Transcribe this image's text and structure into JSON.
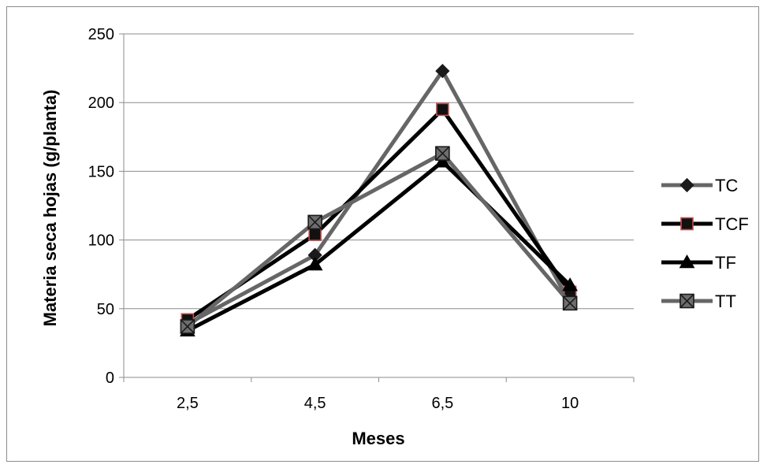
{
  "chart_data": {
    "type": "line",
    "title": "",
    "xlabel": "Meses",
    "ylabel": "Materia seca hojas (g/planta)",
    "categories": [
      "2,5",
      "4,5",
      "6,5",
      "10"
    ],
    "ylim": [
      0,
      250
    ],
    "yticks": [
      0,
      50,
      100,
      150,
      200,
      250
    ],
    "ytick_labels": [
      "0",
      "50",
      "100",
      "150",
      "200",
      "250"
    ],
    "grid": true,
    "legend_position": "right",
    "series": [
      {
        "name": "TC",
        "values": [
          39,
          89,
          223,
          54
        ],
        "color": "#666666",
        "marker": "diamond",
        "marker_fill": "#1a1a1a",
        "marker_stroke": "#1a1a1a"
      },
      {
        "name": "TCF",
        "values": [
          42,
          104,
          195,
          62
        ],
        "color": "#000000",
        "marker": "square",
        "marker_fill": "#111111",
        "marker_stroke": "#c0504d"
      },
      {
        "name": "TF",
        "values": [
          34,
          82,
          157,
          67
        ],
        "color": "#000000",
        "marker": "triangle",
        "marker_fill": "#000000",
        "marker_stroke": "#000000"
      },
      {
        "name": "TT",
        "values": [
          37,
          113,
          163,
          54
        ],
        "color": "#666666",
        "marker": "square-x",
        "marker_fill": "#6e6e6e",
        "marker_stroke": "#1a1a1a"
      }
    ]
  }
}
